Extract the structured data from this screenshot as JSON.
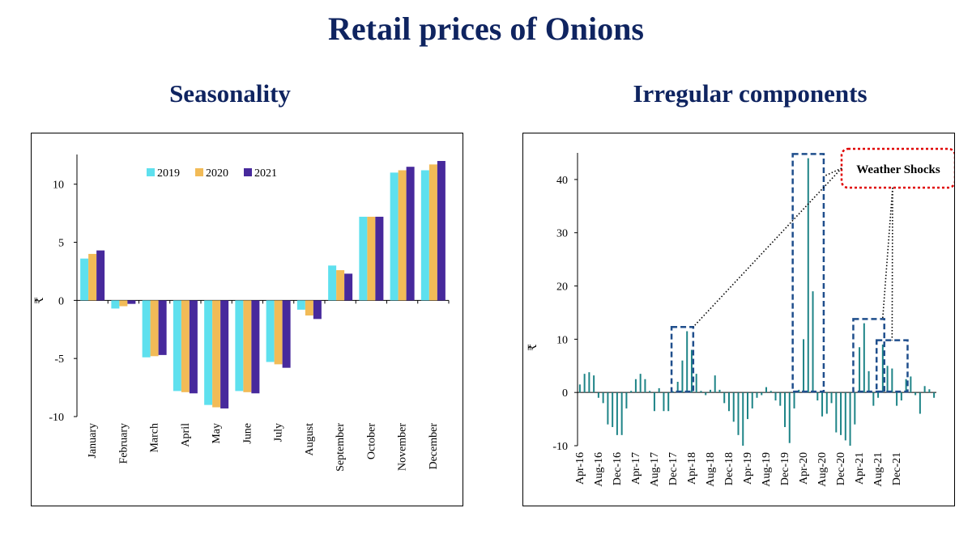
{
  "title": "Retail prices of  Onions",
  "left_subtitle": "Seasonality",
  "right_subtitle": "Irregular components",
  "chart_data": [
    {
      "type": "bar",
      "title": "Seasonality",
      "ylabel": "₹",
      "xlabel": "",
      "ylim": [
        -10,
        12
      ],
      "yticks": [
        -10,
        -5,
        0,
        5,
        10
      ],
      "legend": "top-center",
      "categories": [
        "January",
        "February",
        "March",
        "April",
        "May",
        "June",
        "July",
        "August",
        "September",
        "October",
        "November",
        "December"
      ],
      "series": [
        {
          "name": "2019",
          "color": "#5ee0ee",
          "values": [
            3.6,
            -0.7,
            -4.9,
            -7.8,
            -9.0,
            -7.8,
            -5.3,
            -0.8,
            3.0,
            7.2,
            11.0,
            11.2
          ]
        },
        {
          "name": "2020",
          "color": "#f2bb57",
          "values": [
            4.0,
            -0.5,
            -4.8,
            -7.9,
            -9.2,
            -7.9,
            -5.5,
            -1.3,
            2.6,
            7.2,
            11.2,
            11.7
          ]
        },
        {
          "name": "2021",
          "color": "#47299c",
          "values": [
            4.3,
            -0.3,
            -4.7,
            -8.0,
            -9.3,
            -8.0,
            -5.8,
            -1.6,
            2.3,
            7.2,
            11.5,
            12.0
          ]
        }
      ]
    },
    {
      "type": "bar",
      "title": "Irregular components",
      "ylabel": "₹",
      "xlabel": "",
      "ylim": [
        -10,
        45
      ],
      "yticks": [
        -10,
        0,
        10,
        20,
        30,
        40
      ],
      "color": "#1e8487",
      "x_tick_labels": [
        "Apr-16",
        "Aug-16",
        "Dec-16",
        "Apr-17",
        "Aug-17",
        "Dec-17",
        "Apr-18",
        "Aug-18",
        "Dec-18",
        "Apr-19",
        "Aug-19",
        "Dec-19",
        "Apr-20",
        "Aug-20",
        "Dec-20",
        "Apr-21",
        "Aug-21",
        "Dec-21"
      ],
      "values": [
        1.5,
        3.5,
        3.8,
        3.2,
        -1.0,
        -2.0,
        -6.0,
        -6.5,
        -8.0,
        -8.0,
        -3.0,
        0.3,
        2.5,
        3.5,
        2.5,
        0.3,
        -3.5,
        0.8,
        -3.5,
        -3.5,
        0.2,
        2.0,
        6.0,
        11.5,
        8.0,
        3.5,
        0.3,
        -0.5,
        0.5,
        3.2,
        0.5,
        -2.0,
        -3.5,
        -5.5,
        -8.0,
        -10.0,
        -5.0,
        -3.0,
        -1.0,
        -0.5,
        1.0,
        0.3,
        -1.5,
        -2.5,
        -6.5,
        -9.5,
        -3.0,
        0.5,
        10.0,
        44.0,
        19.0,
        -1.5,
        -4.5,
        -4.0,
        -2.0,
        -7.5,
        -8.0,
        -9.0,
        -10.0,
        -6.0,
        8.5,
        13.0,
        4.0,
        -2.5,
        -1.0,
        9.0,
        5.0,
        4.5,
        -2.5,
        -1.5,
        2.5,
        3.0,
        -0.5,
        -4.0,
        1.2,
        0.6,
        -1.0
      ],
      "highlight_ranges": [
        [
          20,
          24
        ],
        [
          46,
          52
        ],
        [
          59,
          65
        ],
        [
          64,
          70
        ]
      ],
      "annotation": "Weather Shocks"
    }
  ]
}
